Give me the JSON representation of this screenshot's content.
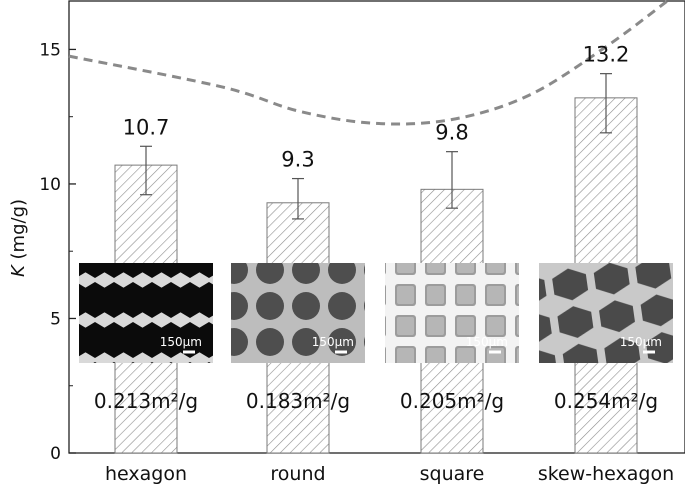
{
  "chart_data": {
    "type": "bar",
    "categories": [
      "hexagon",
      "round",
      "square",
      "skew-hexagon"
    ],
    "values": [
      10.7,
      9.3,
      9.8,
      13.2
    ],
    "error_low": [
      9.6,
      8.7,
      9.1,
      11.9
    ],
    "error_high": [
      11.4,
      10.2,
      11.2,
      14.1
    ],
    "value_labels": [
      "10.7",
      "9.3",
      "9.8",
      "13.2"
    ],
    "area_labels": [
      "0.213m²/g",
      "0.183m²/g",
      "0.205m²/g",
      "0.254m²/g"
    ],
    "scale_bar_label": "150μm",
    "ylabel_italic": "K",
    "ylabel_unit": " (mg/g)",
    "xlabel": "",
    "ylim": [
      0,
      16.8
    ],
    "yticks": [
      0,
      5,
      10,
      15
    ],
    "bar_fill": "hatched",
    "trend_curve": {
      "style": "dashed",
      "color": "#8a8a8a",
      "x": [
        0,
        0.5,
        1,
        1.5,
        2,
        2.5,
        3,
        3.4
      ],
      "y": [
        14.75,
        13.6,
        12.7,
        12.25,
        12.4,
        13.3,
        15.1,
        16.8
      ]
    },
    "inset_images": [
      "hexagon-sem-image",
      "round-sem-image",
      "square-sem-image",
      "skew-hexagon-sem-image"
    ],
    "grid": false,
    "legend": "none"
  }
}
